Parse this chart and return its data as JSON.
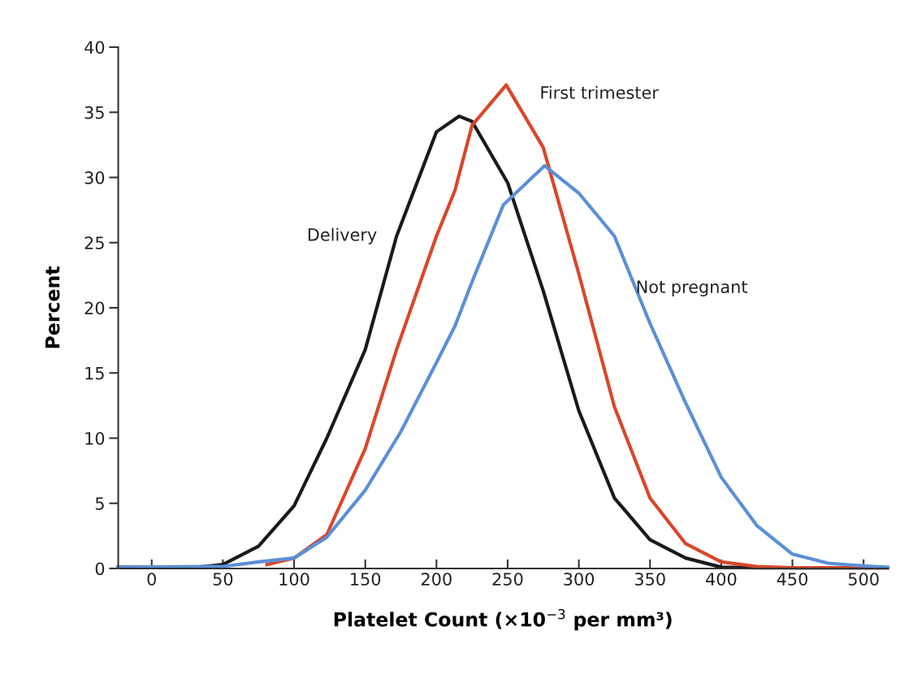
{
  "chart_data": {
    "type": "line",
    "xlabel": "Platelet Count (×10$^{−3}$ per mm³)",
    "ylabel": "Percent",
    "xlim": [
      -23.5,
      517
    ],
    "ylim": [
      0,
      40
    ],
    "xticks": [
      0,
      50,
      100,
      150,
      200,
      250,
      300,
      350,
      400,
      450,
      500
    ],
    "yticks": [
      0,
      5,
      10,
      15,
      20,
      25,
      30,
      35,
      40
    ],
    "grid": false,
    "legend": false,
    "marker": "none",
    "line_style": "solid",
    "series": [
      {
        "name": "Delivery",
        "color": "#1a1a1a",
        "x": [
          -23.5,
          32,
          50,
          75,
          100,
          123,
          150,
          172,
          200,
          216,
          225,
          250,
          275,
          300,
          325,
          350,
          375,
          400,
          425,
          517
        ],
        "values": [
          0.1,
          0.1,
          0.3,
          1.7,
          4.8,
          10.0,
          16.8,
          25.5,
          33.5,
          34.7,
          34.3,
          29.6,
          21.3,
          12.1,
          5.4,
          2.2,
          0.8,
          0.1,
          0.05,
          0.05
        ]
      },
      {
        "name": "First trimester",
        "color": "#d9472b",
        "x": [
          81,
          100,
          123,
          150,
          172,
          200,
          213,
          225,
          249,
          275,
          300,
          325,
          350,
          375,
          400,
          425,
          450,
          500,
          517
        ],
        "values": [
          0.3,
          0.8,
          2.6,
          9.2,
          16.8,
          25.5,
          29.0,
          34.0,
          37.1,
          32.3,
          22.6,
          12.4,
          5.4,
          1.9,
          0.5,
          0.15,
          0.05,
          0.05,
          0.05
        ]
      },
      {
        "name": "Not pregnant",
        "color": "#5b8fd6",
        "x": [
          -23.5,
          50,
          75,
          100,
          123,
          150,
          175,
          200,
          213,
          225,
          247,
          276,
          300,
          325,
          350,
          375,
          400,
          425,
          450,
          475,
          500,
          517
        ],
        "values": [
          0.1,
          0.15,
          0.5,
          0.8,
          2.4,
          6.0,
          10.5,
          15.8,
          18.6,
          22.0,
          27.9,
          30.9,
          28.8,
          25.5,
          18.8,
          12.7,
          7.0,
          3.3,
          1.1,
          0.4,
          0.2,
          0.1
        ]
      }
    ]
  }
}
